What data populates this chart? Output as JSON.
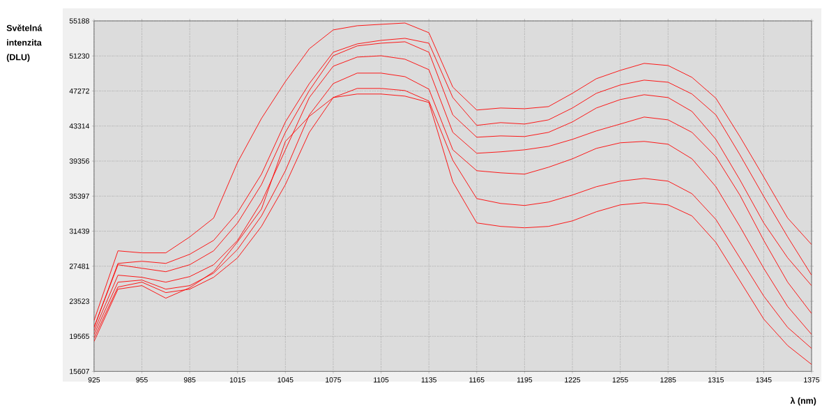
{
  "chart_data": {
    "type": "line",
    "xlabel": "λ (nm)",
    "ylabel": "Světelná intenzita (DLU)",
    "x": [
      925,
      940,
      955,
      970,
      985,
      1000,
      1015,
      1030,
      1045,
      1060,
      1075,
      1090,
      1105,
      1120,
      1135,
      1150,
      1165,
      1180,
      1195,
      1210,
      1225,
      1240,
      1255,
      1270,
      1285,
      1300,
      1315,
      1330,
      1345,
      1360,
      1375
    ],
    "series": [
      {
        "color": "#ff0000",
        "values": [
          21350,
          29220,
          28990,
          28990,
          30790,
          32920,
          39210,
          44170,
          48340,
          52040,
          54170,
          54640,
          54800,
          54950,
          53850,
          47710,
          45120,
          45350,
          45270,
          45510,
          47010,
          48660,
          49600,
          50390,
          50150,
          48810,
          46450,
          42130,
          37560,
          32920,
          29930
        ]
      },
      {
        "color": "#ff0000",
        "values": [
          20570,
          27800,
          28040,
          27800,
          28830,
          30400,
          33550,
          37880,
          43780,
          48110,
          51650,
          52590,
          52990,
          53220,
          52670,
          46530,
          43390,
          43700,
          43540,
          44010,
          45350,
          47010,
          47950,
          48500,
          48260,
          46930,
          44570,
          40080,
          35360,
          30790,
          26470
        ]
      },
      {
        "color": "#ff0000",
        "values": [
          20570,
          27650,
          27250,
          26860,
          27650,
          29220,
          32370,
          36700,
          42600,
          47320,
          51250,
          52360,
          52670,
          52830,
          51650,
          44570,
          42050,
          42200,
          42130,
          42600,
          43780,
          45350,
          46300,
          46850,
          46530,
          44960,
          41810,
          37250,
          32370,
          28430,
          25290
        ]
      },
      {
        "color": "#ff0000",
        "values": [
          20170,
          26470,
          26230,
          25680,
          26310,
          27650,
          30400,
          34730,
          40630,
          46530,
          50070,
          51100,
          51250,
          50860,
          49680,
          42600,
          40240,
          40400,
          40630,
          41020,
          41810,
          42760,
          43540,
          44330,
          44010,
          42600,
          39840,
          35520,
          30400,
          25680,
          22140
        ]
      },
      {
        "color": "#ff0000",
        "values": [
          19780,
          25680,
          25920,
          24890,
          25290,
          26700,
          29380,
          33160,
          38270,
          44570,
          48110,
          49290,
          49290,
          48890,
          47480,
          40630,
          38270,
          38030,
          37880,
          38660,
          39610,
          40790,
          41420,
          41580,
          41260,
          39610,
          36460,
          31980,
          27250,
          22930,
          19780
        ]
      },
      {
        "color": "#ff0000",
        "values": [
          19380,
          25130,
          25680,
          24500,
          24890,
          26230,
          28430,
          31980,
          36700,
          42600,
          46530,
          47560,
          47560,
          47320,
          46140,
          39450,
          35120,
          34570,
          34340,
          34730,
          35520,
          36460,
          37090,
          37400,
          37090,
          35670,
          32760,
          28430,
          24110,
          20570,
          18200
        ]
      },
      {
        "color": "#ff0000",
        "values": [
          18990,
          24890,
          25290,
          23870,
          25050,
          26860,
          30240,
          33940,
          41580,
          44410,
          46530,
          46930,
          46930,
          46690,
          45980,
          37010,
          32370,
          31980,
          31820,
          31980,
          32600,
          33630,
          34410,
          34650,
          34410,
          33160,
          30170,
          25840,
          21510,
          18520,
          16390
        ]
      }
    ],
    "xlim": [
      925,
      1375
    ],
    "ylim": [
      15607,
      55188
    ],
    "xticks": [
      925,
      955,
      985,
      1015,
      1045,
      1075,
      1105,
      1135,
      1165,
      1195,
      1225,
      1255,
      1285,
      1315,
      1345,
      1375
    ],
    "yticks": [
      15607,
      19565,
      23523,
      27481,
      31439,
      35397,
      39356,
      43314,
      47272,
      51230,
      55188
    ],
    "grid": true,
    "marker": "none",
    "line_style": "solid"
  }
}
